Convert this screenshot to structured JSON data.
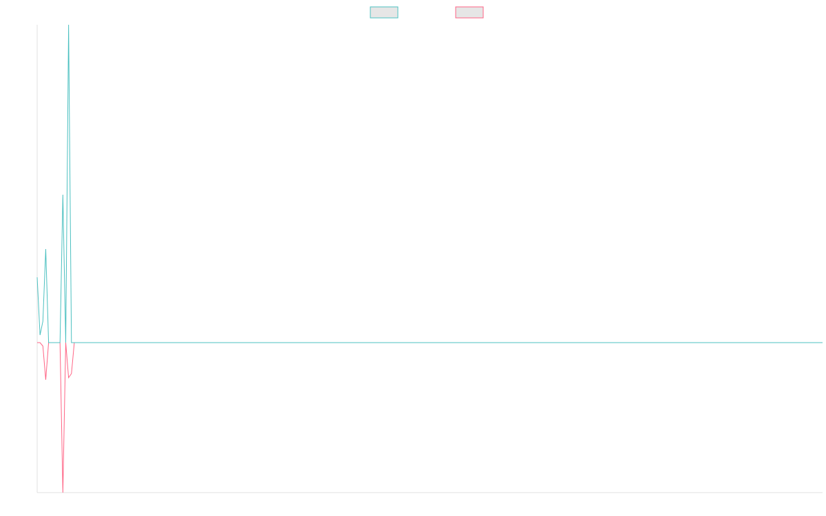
{
  "chart_data": {
    "type": "line",
    "xlim": [
      0,
      275
    ],
    "ylim": [
      -218,
      462
    ],
    "legend": "top",
    "series": [
      {
        "color": "#4bc0c0",
        "values": [
          95,
          11,
          31,
          136,
          0,
          0,
          0,
          0,
          0,
          215,
          0,
          462,
          0,
          0,
          0,
          0,
          0,
          0,
          0,
          0,
          0,
          0,
          0,
          0,
          0,
          0,
          0,
          0,
          0,
          0,
          0,
          0,
          0,
          0,
          0,
          0,
          0,
          0,
          0,
          0,
          0,
          0,
          0,
          0,
          0,
          0,
          0,
          0,
          0,
          0,
          0,
          0,
          0,
          0,
          0,
          0,
          0,
          0,
          0,
          0,
          0,
          0,
          0,
          0,
          0,
          0,
          0,
          0,
          0,
          0,
          0,
          0,
          0,
          0,
          0,
          0,
          0,
          0,
          0,
          0,
          0,
          0,
          0,
          0,
          0,
          0,
          0,
          0,
          0,
          0,
          0,
          0,
          0,
          0,
          0,
          0,
          0,
          0,
          0,
          0,
          0,
          0,
          0,
          0,
          0,
          0,
          0,
          0,
          0,
          0,
          0,
          0,
          0,
          0,
          0,
          0,
          0,
          0,
          0,
          0,
          0,
          0,
          0,
          0,
          0,
          0,
          0,
          0,
          0,
          0,
          0,
          0,
          0,
          0,
          0,
          0,
          0,
          0,
          0,
          0,
          0,
          0,
          0,
          0,
          0,
          0,
          0,
          0,
          0,
          0,
          0,
          0,
          0,
          0,
          0,
          0,
          0,
          0,
          0,
          0,
          0,
          0,
          0,
          0,
          0,
          0,
          0,
          0,
          0,
          0,
          0,
          0,
          0,
          0,
          0,
          0,
          0,
          0,
          0,
          0,
          0,
          0,
          0,
          0,
          0,
          0,
          0,
          0,
          0,
          0,
          0,
          0,
          0,
          0,
          0,
          0,
          0,
          0,
          0,
          0,
          0,
          0,
          0,
          0,
          0,
          0,
          0,
          0,
          0,
          0,
          0,
          0,
          0,
          0,
          0,
          0,
          0,
          0,
          0,
          0,
          0,
          0,
          0,
          0,
          0,
          0,
          0,
          0,
          0,
          0,
          0,
          0,
          0,
          0,
          0,
          0,
          0,
          0,
          0,
          0,
          0,
          0,
          0,
          0,
          0,
          0,
          0,
          0,
          0,
          0,
          0,
          0,
          0,
          0,
          0,
          0,
          0,
          0,
          0,
          0,
          0,
          0,
          0,
          0,
          0,
          0,
          0,
          0,
          0,
          0,
          0,
          0,
          0,
          0,
          0,
          0
        ]
      },
      {
        "color": "#ff6384",
        "values": [
          0,
          0,
          -5,
          -54,
          0,
          0,
          0,
          0,
          0,
          -218,
          0,
          -51,
          -45,
          0,
          0,
          0,
          0,
          0,
          0,
          0,
          0,
          0,
          0,
          0,
          0,
          0,
          0,
          0,
          0,
          0,
          0,
          0,
          0,
          0,
          0,
          0,
          0,
          0,
          0,
          0,
          0,
          0,
          0,
          0,
          0,
          0,
          0,
          0,
          0,
          0,
          0,
          0,
          0,
          0,
          0,
          0,
          0,
          0,
          0,
          0,
          0,
          0,
          0,
          0,
          0,
          0,
          0,
          0,
          0,
          0,
          0,
          0,
          0,
          0,
          0,
          0,
          0,
          0,
          0,
          0,
          0,
          0,
          0,
          0,
          0,
          0,
          0,
          0,
          0,
          0,
          0,
          0,
          0,
          0,
          0,
          0,
          0,
          0,
          0,
          0,
          0,
          0,
          0,
          0,
          0,
          0,
          0,
          0,
          0,
          0,
          0,
          0,
          0,
          0,
          0,
          0,
          0,
          0,
          0,
          0,
          0,
          0,
          0,
          0,
          0,
          0,
          0,
          0,
          0,
          0,
          0,
          0,
          0,
          0,
          0,
          0,
          0,
          0,
          0,
          0,
          0,
          0,
          0,
          0,
          0,
          0,
          0,
          0,
          0,
          0,
          0,
          0,
          0,
          0,
          0,
          0,
          0,
          0,
          0,
          0,
          0,
          0,
          0,
          0,
          0,
          0,
          0,
          0,
          0,
          0,
          0,
          0,
          0,
          0,
          0,
          0,
          0,
          0,
          0,
          0,
          0,
          0,
          0,
          0,
          0,
          0,
          0,
          0,
          0,
          0,
          0,
          0,
          0,
          0,
          0,
          0,
          0,
          0,
          0,
          0,
          0,
          0,
          0,
          0,
          0,
          0,
          0,
          0,
          0,
          0,
          0,
          0,
          0,
          0,
          0,
          0,
          0,
          0,
          0,
          0,
          0,
          0,
          0,
          0,
          0,
          0,
          0,
          0,
          0,
          0,
          0,
          0,
          0,
          0,
          0,
          0,
          0,
          0,
          0,
          0,
          0,
          0,
          0,
          0,
          0,
          0,
          0,
          0,
          0,
          0,
          0,
          0,
          0,
          0,
          0,
          0,
          0,
          0,
          0,
          0,
          0,
          0,
          0,
          0,
          0,
          0,
          0,
          0,
          0,
          0,
          0,
          0,
          0,
          0,
          0,
          0
        ]
      }
    ]
  }
}
